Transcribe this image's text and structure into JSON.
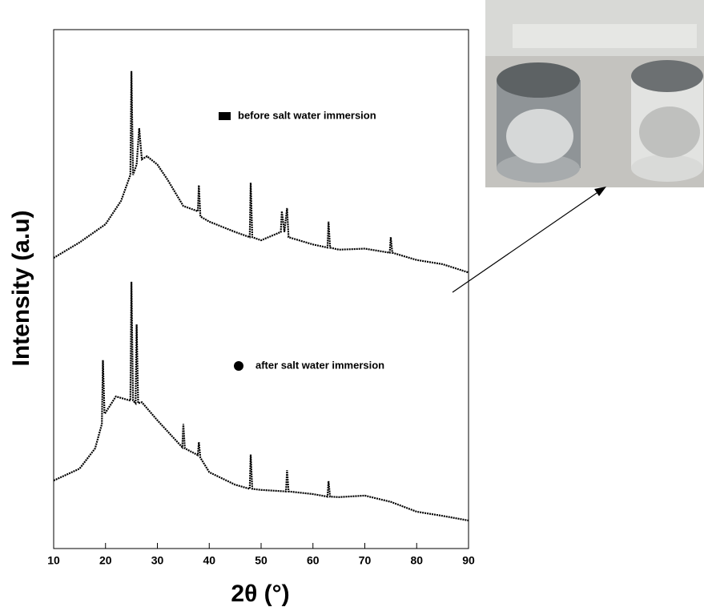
{
  "chart_data": {
    "type": "line",
    "x_label": "2θ (°)",
    "y_label": "Intensity (a.u)",
    "xlim": [
      10,
      90
    ],
    "ylim": [
      0,
      100
    ],
    "xticks": [
      10,
      20,
      30,
      40,
      50,
      60,
      70,
      80,
      90
    ],
    "series": [
      {
        "name": "before salt water immersion",
        "color": "#000000",
        "marker": "square",
        "x": [
          10,
          15,
          20,
          23,
          24.8,
          25,
          25.3,
          26,
          26.5,
          27,
          28,
          30,
          32,
          35,
          37.8,
          38,
          38.3,
          40,
          45,
          47.8,
          48,
          48.3,
          50,
          53.8,
          54,
          54.5,
          55,
          55.3,
          60,
          62.8,
          63,
          63.3,
          65,
          70,
          74.8,
          75,
          75.3,
          80,
          85,
          90
        ],
        "values": [
          56,
          59,
          62.5,
          67,
          72,
          92,
          72,
          74,
          81,
          75,
          75.6,
          74,
          71,
          66,
          65,
          70,
          64,
          63,
          61,
          60,
          70.5,
          60,
          59.4,
          61,
          65,
          61,
          65.6,
          60,
          58.6,
          58,
          63,
          58,
          57.6,
          57.8,
          57,
          60,
          57,
          55.6,
          54.8,
          53.2
        ]
      },
      {
        "name": "after salt water immersion",
        "color": "#000000",
        "marker": "circle",
        "x": [
          10,
          15,
          18,
          19.3,
          19.5,
          19.8,
          20,
          22,
          24.8,
          25,
          25.3,
          25.8,
          26,
          26.3,
          27,
          30,
          34.8,
          35,
          35.3,
          37.8,
          38,
          38.3,
          40,
          45,
          47.8,
          48,
          48.3,
          50,
          54.8,
          55,
          55.3,
          60,
          62.8,
          63,
          63.3,
          65,
          70,
          75,
          80,
          85,
          90
        ],
        "values": [
          13.1,
          15.4,
          19.3,
          24,
          36.3,
          26,
          26.2,
          29.3,
          28.5,
          51.4,
          28.5,
          28,
          43.2,
          28,
          28.2,
          24.7,
          19.5,
          24,
          19.3,
          18,
          20.5,
          17.5,
          14.7,
          12.3,
          11.5,
          18.1,
          11.5,
          11.3,
          11,
          15.1,
          11,
          10.5,
          10,
          13,
          10,
          9.9,
          10.2,
          9,
          7.1,
          6.3,
          5.4
        ]
      }
    ]
  }
}
